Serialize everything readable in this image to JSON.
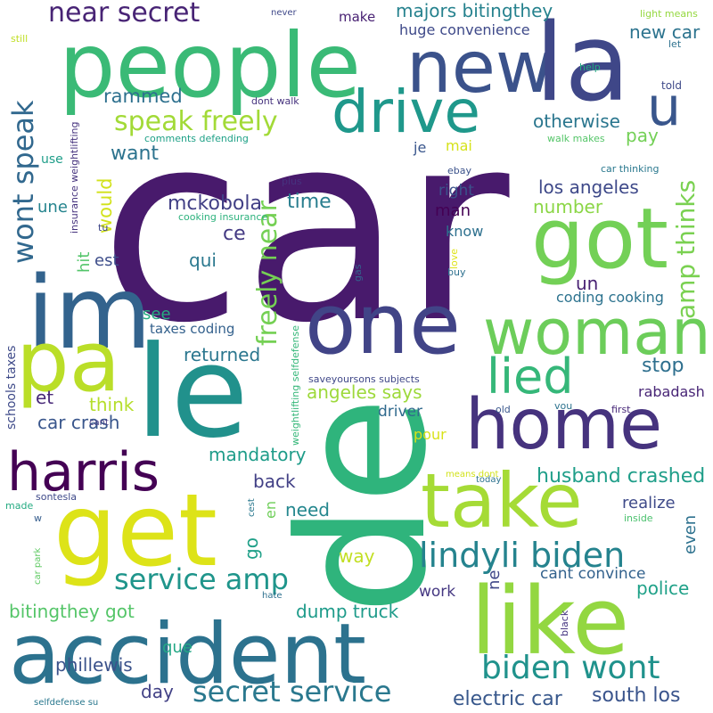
{
  "words": [
    {
      "id": "car",
      "text": "car",
      "color": "#481a6c"
    },
    {
      "id": "de",
      "text": "de",
      "color": "#2fb47c"
    },
    {
      "id": "people",
      "text": "people",
      "color": "#3aba76"
    },
    {
      "id": "new",
      "text": "new",
      "color": "#3b528b"
    },
    {
      "id": "la",
      "text": "la",
      "color": "#3f4788"
    },
    {
      "id": "u",
      "text": "u",
      "color": "#39568c"
    },
    {
      "id": "drive",
      "text": "drive",
      "color": "#1f988b"
    },
    {
      "id": "got",
      "text": "got",
      "color": "#73d056"
    },
    {
      "id": "im",
      "text": "im",
      "color": "#33638d"
    },
    {
      "id": "pa",
      "text": "pa",
      "color": "#bade28"
    },
    {
      "id": "le",
      "text": "le",
      "color": "#21918c"
    },
    {
      "id": "one",
      "text": "one",
      "color": "#414487"
    },
    {
      "id": "woman",
      "text": "woman",
      "color": "#6ccd5a"
    },
    {
      "id": "home",
      "text": "home",
      "color": "#46337e"
    },
    {
      "id": "lied",
      "text": "lied",
      "color": "#35b779"
    },
    {
      "id": "harris",
      "text": "harris",
      "color": "#440154"
    },
    {
      "id": "get",
      "text": "get",
      "color": "#dde318"
    },
    {
      "id": "take",
      "text": "take",
      "color": "#a5db36"
    },
    {
      "id": "like",
      "text": "like",
      "color": "#93d741"
    },
    {
      "id": "accident",
      "text": "accident",
      "color": "#2c728e"
    },
    {
      "id": "near-secret",
      "text": "near secret",
      "color": "#482475"
    },
    {
      "id": "majors",
      "text": "majors bitingthey",
      "color": "#26828e"
    },
    {
      "id": "huge",
      "text": "huge convenience",
      "color": "#3e4989"
    },
    {
      "id": "wont-speak",
      "text": "wont speak",
      "color": "#31688e"
    },
    {
      "id": "speak-freely",
      "text": "speak freely",
      "color": "#a2da37"
    },
    {
      "id": "rammed",
      "text": "rammed",
      "color": "#2d708e"
    },
    {
      "id": "want",
      "text": "want",
      "color": "#2c738e"
    },
    {
      "id": "would",
      "text": "would",
      "color": "#d2e21b"
    },
    {
      "id": "mckobola",
      "text": "mckobola",
      "color": "#424086"
    },
    {
      "id": "time",
      "text": "time",
      "color": "#287d8e"
    },
    {
      "id": "freely-near",
      "text": "freely near",
      "color": "#75d054"
    },
    {
      "id": "ce",
      "text": "ce",
      "color": "#443a83"
    },
    {
      "id": "qui",
      "text": "qui",
      "color": "#2a788e"
    },
    {
      "id": "hit",
      "text": "hit",
      "color": "#52c569"
    },
    {
      "id": "est",
      "text": "est",
      "color": "#3d4d8a"
    },
    {
      "id": "une",
      "text": "une",
      "color": "#25848e"
    },
    {
      "id": "use",
      "text": "use",
      "color": "#1f9e89"
    },
    {
      "id": "see",
      "text": "see",
      "color": "#26ad81"
    },
    {
      "id": "taxes-coding",
      "text": "taxes coding",
      "color": "#34618d"
    },
    {
      "id": "returned",
      "text": "returned",
      "color": "#2a768e"
    },
    {
      "id": "think",
      "text": "think",
      "color": "#b5de2b"
    },
    {
      "id": "et",
      "text": "et",
      "color": "#482878"
    },
    {
      "id": "car-crash",
      "text": "car crash",
      "color": "#39568c"
    },
    {
      "id": "mandatory",
      "text": "mandatory",
      "color": "#1e9c89"
    },
    {
      "id": "back",
      "text": "back",
      "color": "#424086"
    },
    {
      "id": "need",
      "text": "need",
      "color": "#24878e"
    },
    {
      "id": "en",
      "text": "en",
      "color": "#6ece58"
    },
    {
      "id": "go",
      "text": "go",
      "color": "#1fa088"
    },
    {
      "id": "service-amp",
      "text": "service amp",
      "color": "#1f958b"
    },
    {
      "id": "bitingthey-got",
      "text": "bitingthey got",
      "color": "#54c568"
    },
    {
      "id": "que",
      "text": "que",
      "color": "#22a785"
    },
    {
      "id": "phillewis",
      "text": "phillewis",
      "color": "#3b528b"
    },
    {
      "id": "day",
      "text": "day",
      "color": "#424186"
    },
    {
      "id": "secret-service",
      "text": "secret service",
      "color": "#2a788e"
    },
    {
      "id": "dump-truck",
      "text": "dump truck",
      "color": "#1e9b8a"
    },
    {
      "id": "electric-car",
      "text": "electric car",
      "color": "#38588c"
    },
    {
      "id": "biden-wont",
      "text": "biden wont",
      "color": "#20928c"
    },
    {
      "id": "lindyli-biden",
      "text": "lindyli biden",
      "color": "#25838e"
    },
    {
      "id": "way",
      "text": "way",
      "color": "#c2df23"
    },
    {
      "id": "ne",
      "text": "ne",
      "color": "#3f4788"
    },
    {
      "id": "work",
      "text": "work",
      "color": "#453882"
    },
    {
      "id": "angeles-says",
      "text": "angeles says",
      "color": "#9dd93b"
    },
    {
      "id": "driver",
      "text": "driver",
      "color": "#306a8e"
    },
    {
      "id": "pour",
      "text": "pour",
      "color": "#d8e219"
    },
    {
      "id": "husband-crashed",
      "text": "husband crashed",
      "color": "#1f9e89"
    },
    {
      "id": "realize",
      "text": "realize",
      "color": "#3e4a89"
    },
    {
      "id": "even",
      "text": "even",
      "color": "#2d718e"
    },
    {
      "id": "cant-convince",
      "text": "cant convince",
      "color": "#33628d"
    },
    {
      "id": "police",
      "text": "police",
      "color": "#1fa188"
    },
    {
      "id": "south-los",
      "text": "south los",
      "color": "#3a548c"
    },
    {
      "id": "stop",
      "text": "stop",
      "color": "#2e6f8e"
    },
    {
      "id": "rabadash",
      "text": "rabadash",
      "color": "#482576"
    },
    {
      "id": "coding-cooking",
      "text": "coding cooking",
      "color": "#2c728e"
    },
    {
      "id": "un",
      "text": "un",
      "color": "#482173"
    },
    {
      "id": "number",
      "text": "number",
      "color": "#8bd646"
    },
    {
      "id": "know",
      "text": "know",
      "color": "#2d708e"
    },
    {
      "id": "los-angeles",
      "text": "los angeles",
      "color": "#3e4989"
    },
    {
      "id": "man",
      "text": "man",
      "color": "#440154"
    },
    {
      "id": "right",
      "text": "right",
      "color": "#3b528b"
    },
    {
      "id": "amp-thinks",
      "text": "amp thinks",
      "color": "#7ad151"
    },
    {
      "id": "pay",
      "text": "pay",
      "color": "#73d056"
    },
    {
      "id": "new-car",
      "text": "new car",
      "color": "#2c738e"
    },
    {
      "id": "otherwise",
      "text": "otherwise",
      "color": "#2a768e"
    },
    {
      "id": "mai",
      "text": "mai",
      "color": "#d5e21a"
    },
    {
      "id": "je",
      "text": "je",
      "color": "#39568c"
    },
    {
      "id": "make",
      "text": "make",
      "color": "#482173"
    },
    {
      "id": "never",
      "text": "never",
      "color": "#3f4889"
    },
    {
      "id": "light-means",
      "text": "light means",
      "color": "#95d840"
    },
    {
      "id": "let",
      "text": "let",
      "color": "#2d718e"
    },
    {
      "id": "told",
      "text": "told",
      "color": "#3e4989"
    },
    {
      "id": "help",
      "text": "help",
      "color": "#25ac82"
    },
    {
      "id": "still",
      "text": "still",
      "color": "#c0df25"
    },
    {
      "id": "dont-walk",
      "text": "dont walk",
      "color": "#46337e"
    },
    {
      "id": "comments-defending",
      "text": "comments defending",
      "color": "#1fa187"
    },
    {
      "id": "walk-makes",
      "text": "walk makes",
      "color": "#54c568"
    },
    {
      "id": "ebay",
      "text": "ebay",
      "color": "#3b528b"
    },
    {
      "id": "car-thinking",
      "text": "car thinking",
      "color": "#2a788e"
    },
    {
      "id": "plus",
      "text": "plus",
      "color": "#46327e"
    },
    {
      "id": "cooking-insurance",
      "text": "cooking insurance",
      "color": "#2db27d"
    },
    {
      "id": "tu",
      "text": "tu",
      "color": "#3f4788"
    },
    {
      "id": "insurance-weightlifting",
      "text": "insurance weightlifting",
      "color": "#46337e"
    },
    {
      "id": "gas",
      "text": "gas",
      "color": "#33638d"
    },
    {
      "id": "love",
      "text": "love",
      "color": "#dfe318"
    },
    {
      "id": "buy",
      "text": "buy",
      "color": "#2d708e"
    },
    {
      "id": "schools-taxes",
      "text": "schools taxes",
      "color": "#3e4a89"
    },
    {
      "id": "weightlifting-selfdefense",
      "text": "weightlifting selfdefense",
      "color": "#35b779"
    },
    {
      "id": "saveyoursons",
      "text": "saveyoursons subjects",
      "color": "#3f4788"
    },
    {
      "id": "cant",
      "text": "cant",
      "color": "#443983"
    },
    {
      "id": "old",
      "text": "old",
      "color": "#39568c"
    },
    {
      "id": "vou",
      "text": "vou",
      "color": "#2c728e"
    },
    {
      "id": "first",
      "text": "first",
      "color": "#482979"
    },
    {
      "id": "means-dont",
      "text": "means dont",
      "color": "#d2e21b"
    },
    {
      "id": "today",
      "text": "today",
      "color": "#2c728e"
    },
    {
      "id": "sontesla",
      "text": "sontesla",
      "color": "#3e4989"
    },
    {
      "id": "made",
      "text": "made",
      "color": "#25ab82"
    },
    {
      "id": "w",
      "text": "w",
      "color": "#365d8d"
    },
    {
      "id": "cest",
      "text": "cest",
      "color": "#2a788e"
    },
    {
      "id": "inside",
      "text": "inside",
      "color": "#4ac16d"
    },
    {
      "id": "car-park",
      "text": "car park",
      "color": "#5ec962"
    },
    {
      "id": "hate",
      "text": "hate",
      "color": "#2d708e"
    },
    {
      "id": "black",
      "text": "black",
      "color": "#453581"
    },
    {
      "id": "selfdefense-su",
      "text": "selfdefense su",
      "color": "#2a788e"
    }
  ]
}
